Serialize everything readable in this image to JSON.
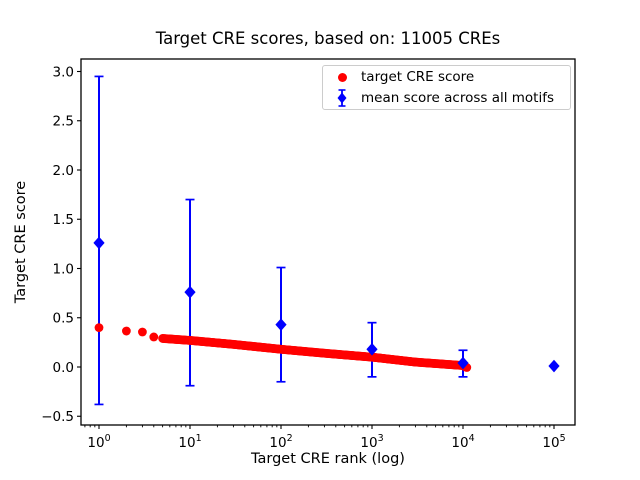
{
  "figure": {
    "title": "Target CRE scores, based on: 11005 CREs",
    "xlabel": "Target CRE rank (log)",
    "ylabel": "Target CRE score"
  },
  "legend": {
    "position": "upper right",
    "entries": [
      {
        "label": "target CRE score",
        "marker": "circle",
        "color": "#ff0000"
      },
      {
        "label": "mean score across all motifs",
        "marker": "diamond-with-errorbar",
        "color": "#0000ff"
      }
    ]
  },
  "chart_data": {
    "type": "scatter",
    "title": "Target CRE scores, based on: 11005 CREs",
    "xlabel": "Target CRE rank (log)",
    "ylabel": "Target CRE score",
    "x_scale": "log",
    "xlim_log10": [
      -0.2,
      5.23
    ],
    "ylim": [
      -0.59,
      3.13
    ],
    "y_ticks": [
      3.0,
      2.5,
      2.0,
      1.5,
      1.0,
      0.5,
      0.0,
      -0.5
    ],
    "x_ticks_log10": [
      0,
      1,
      2,
      3,
      4,
      5
    ],
    "x_minor_ticks": "2-9 per decade",
    "grid": false,
    "series": [
      {
        "name": "target CRE score",
        "color": "#ff0000",
        "marker": "circle",
        "count": 11005,
        "note": "11005 points at ranks 1..11005 forming a dense band; anchor values read from plot",
        "anchors": [
          {
            "rank": 1,
            "score": 0.4
          },
          {
            "rank": 2,
            "score": 0.365
          },
          {
            "rank": 3,
            "score": 0.355
          },
          {
            "rank": 4,
            "score": 0.305
          },
          {
            "rank": 5,
            "score": 0.29
          },
          {
            "rank": 10,
            "score": 0.27
          },
          {
            "rank": 30,
            "score": 0.23
          },
          {
            "rank": 100,
            "score": 0.18
          },
          {
            "rank": 300,
            "score": 0.14
          },
          {
            "rank": 1000,
            "score": 0.1
          },
          {
            "rank": 3000,
            "score": 0.05
          },
          {
            "rank": 10000,
            "score": 0.015
          },
          {
            "rank": 11005,
            "score": -0.005
          }
        ]
      },
      {
        "name": "mean score across all motifs",
        "color": "#0000ff",
        "marker": "diamond",
        "points": [
          {
            "rank": 1,
            "mean": 1.26,
            "upper": 2.95,
            "lower": -0.38
          },
          {
            "rank": 10,
            "mean": 0.76,
            "upper": 1.7,
            "lower": -0.19
          },
          {
            "rank": 100,
            "mean": 0.43,
            "upper": 1.01,
            "lower": -0.15
          },
          {
            "rank": 1000,
            "mean": 0.18,
            "upper": 0.45,
            "lower": -0.1
          },
          {
            "rank": 10000,
            "mean": 0.04,
            "upper": 0.17,
            "lower": -0.1
          },
          {
            "rank": 100000,
            "mean": 0.01,
            "upper": 0.02,
            "lower": 0.0
          }
        ]
      }
    ]
  }
}
